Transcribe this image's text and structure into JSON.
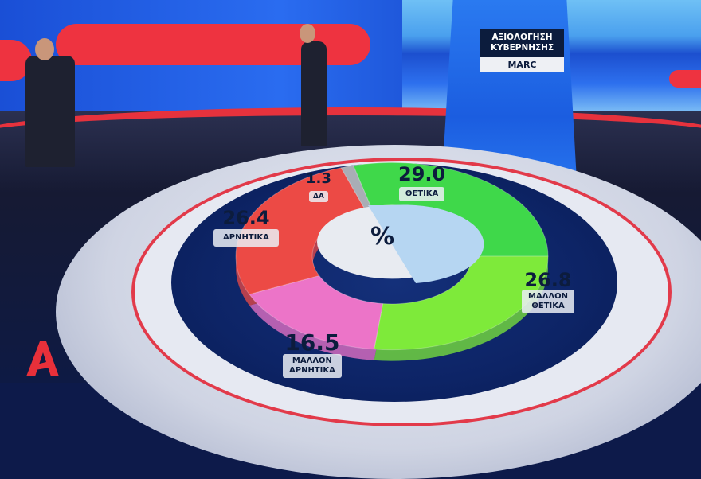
{
  "card": {
    "title_line1": "ΑΞΙΟΛΟΓΗΣΗ",
    "title_line2": "ΚΥΒΕΡΝΗΣΗΣ",
    "source": "MARC"
  },
  "logo": {
    "text": "Α"
  },
  "chart_data": {
    "type": "pie",
    "donut": true,
    "center_label": "%",
    "categories": [
      "ΘΕΤΙΚΑ",
      "ΜΑΛΛΟΝ ΘΕΤΙΚΑ",
      "ΜΑΛΛΟΝ ΑΡΝΗΤΙΚΑ",
      "ΑΡΝΗΤΙΚΑ",
      "ΔΑ"
    ],
    "values": [
      29.0,
      26.8,
      16.5,
      26.4,
      1.3
    ],
    "value_labels": [
      "29.0",
      "26.8",
      "16.5",
      "26.4",
      "1.3"
    ],
    "category_labels": [
      [
        "ΘΕΤΙΚΑ"
      ],
      [
        "ΜΑΛΛΟΝ",
        "ΘΕΤΙΚΑ"
      ],
      [
        "ΜΑΛΛΟΝ",
        "ΑΡΝΗΤΙΚΑ"
      ],
      [
        "ΑΡΝΗΤΙΚΑ"
      ],
      [
        "ΔΑ"
      ]
    ],
    "colors": [
      "#3fd84a",
      "#7eea3a",
      "#ec74c8",
      "#ec4a45",
      "#a9adb5"
    ]
  }
}
